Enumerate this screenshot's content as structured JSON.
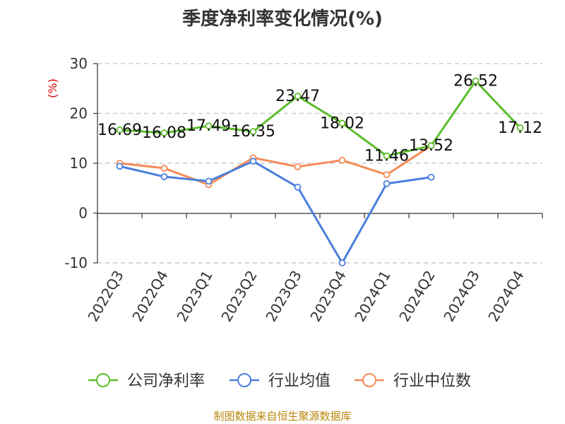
{
  "title": "季度净利率变化情况(%)",
  "source": "制图数据来自恒生聚源数据库",
  "chart_data": {
    "type": "line",
    "title": "季度净利率变化情况(%)",
    "ylabel": "(%)",
    "xlabel": "",
    "ylim": [
      -10,
      30
    ],
    "yticks": [
      30,
      20,
      10,
      0,
      -10
    ],
    "ytick_labels": [
      "30",
      "20",
      "10",
      "0",
      "-10"
    ],
    "grid": true,
    "legend_position": "bottom",
    "categories": [
      "2022Q3",
      "2022Q4",
      "2023Q1",
      "2023Q2",
      "2023Q3",
      "2023Q4",
      "2024Q1",
      "2024Q2",
      "2024Q3",
      "2024Q4"
    ],
    "series": [
      {
        "name": "公司净利率",
        "color": "#5cbd2b",
        "values": [
          16.69,
          16.08,
          17.49,
          16.35,
          23.47,
          18.02,
          11.46,
          13.52,
          26.52,
          17.12
        ],
        "labels": [
          "16.69",
          "16.08",
          "17.49",
          "16.35",
          "23.47",
          "18.02",
          "11.46",
          "13.52",
          "26.52",
          "17.12"
        ]
      },
      {
        "name": "行业均值",
        "color": "#4b7fdc",
        "values": [
          9.4,
          7.3,
          6.4,
          10.4,
          5.2,
          -10.0,
          5.9,
          7.2,
          null,
          null
        ]
      },
      {
        "name": "行业中位数",
        "color": "#f58b58",
        "values": [
          10.0,
          9.0,
          5.7,
          11.1,
          9.3,
          10.6,
          7.7,
          13.52,
          null,
          null
        ]
      }
    ]
  }
}
